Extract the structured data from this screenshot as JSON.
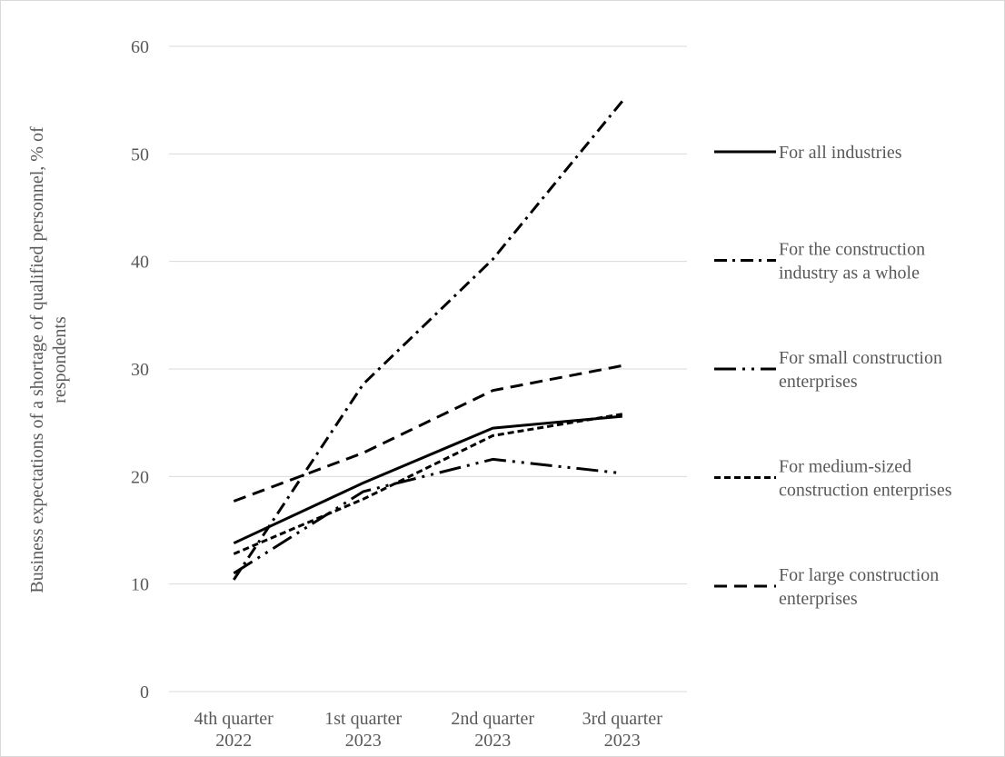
{
  "chart_data": {
    "type": "line",
    "title": "",
    "xlabel": "",
    "ylabel_lines": [
      "Business expectations of a shortage of qualified personnel, % of",
      "respondents"
    ],
    "ylim": [
      0,
      60
    ],
    "yticks": [
      0,
      10,
      20,
      30,
      40,
      50,
      60
    ],
    "grid": true,
    "legend_position": "right",
    "categories": [
      [
        "4th quarter",
        "2022"
      ],
      [
        "1st quarter",
        "2023"
      ],
      [
        "2nd quarter",
        "2023"
      ],
      [
        "3rd quarter",
        "2023"
      ]
    ],
    "series": [
      {
        "name": "For all industries",
        "name_lines": [
          "For all industries"
        ],
        "dash": "solid",
        "values": [
          13.8,
          19.4,
          24.5,
          25.6
        ]
      },
      {
        "name": "For the construction industry as a whole",
        "name_lines": [
          " For the construction",
          "industry as a whole"
        ],
        "dash": "dash-dot",
        "values": [
          10.4,
          28.6,
          40.2,
          54.9
        ]
      },
      {
        "name": "For small construction enterprises",
        "name_lines": [
          "For small construction",
          "enterprises"
        ],
        "dash": "long-dash-dot-dot",
        "values": [
          11.0,
          18.6,
          21.6,
          20.3
        ]
      },
      {
        "name": "For medium-sized construction enterprises",
        "name_lines": [
          "For medium-sized",
          "construction enterprises"
        ],
        "dash": "short-dash",
        "values": [
          12.8,
          17.9,
          23.8,
          25.8
        ]
      },
      {
        "name": "For large construction enterprises",
        "name_lines": [
          "For large construction",
          "enterprises"
        ],
        "dash": "dash",
        "values": [
          17.7,
          22.2,
          28.0,
          30.3
        ]
      }
    ]
  }
}
